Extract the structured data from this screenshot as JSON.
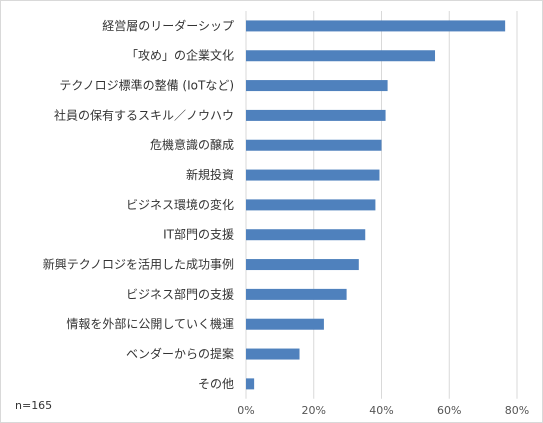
{
  "chart_data": {
    "type": "bar",
    "orientation": "horizontal",
    "categories": [
      "経営層のリーダーシップ",
      "「攻め」の企業文化",
      "テクノロジ標準の整備 (IoTなど)",
      "社員の保有するスキル／ノウハウ",
      "危機意識の醸成",
      "新規投資",
      "ビジネス環境の変化",
      "IT部門の支援",
      "新興テクノロジを活用した成功事例",
      "ビジネス部門の支援",
      "情報を外部に公開していく機運",
      "ベンダーからの提案",
      "その他"
    ],
    "values": [
      76.5,
      55.8,
      41.8,
      41.2,
      40.0,
      39.4,
      38.2,
      35.2,
      33.3,
      29.7,
      23.0,
      15.8,
      2.4
    ],
    "x_ticks": [
      "0%",
      "20%",
      "40%",
      "60%",
      "80%"
    ],
    "xlim": [
      0,
      80
    ],
    "grid": true,
    "bar_color": "#4f81bd",
    "grid_color": "#d9d9d9"
  },
  "sample_note": "n=165"
}
